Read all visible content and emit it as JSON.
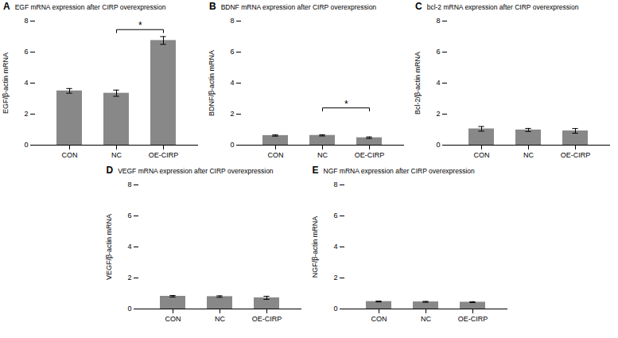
{
  "chart_data": [
    {
      "type": "bar",
      "title": "EGF mRNA expression after CIRP overexpression",
      "ylabel": "EGF/β-actin mRNA",
      "categories": [
        "CON",
        "NC",
        "OE-CIRP"
      ],
      "values": [
        3.5,
        3.35,
        6.75
      ],
      "errors": [
        0.15,
        0.2,
        0.25
      ],
      "color": "#888888",
      "ylim": [
        0,
        8
      ],
      "yticks": [
        0,
        2,
        4,
        6,
        8
      ],
      "annotations": [
        {
          "text": "A"
        },
        {
          "text": "*",
          "x": [
            "NC",
            "OE-CIRP"
          ],
          "y": 7.45
        }
      ]
    },
    {
      "type": "bar",
      "title": "BDNF mRNA expression after CIRP overexpression",
      "ylabel": "BDNF/β-actin mRNA",
      "categories": [
        "CON",
        "NC",
        "OE-CIRP"
      ],
      "values": [
        0.62,
        0.63,
        0.48
      ],
      "errors": [
        0.04,
        0.04,
        0.05
      ],
      "color": "#888888",
      "ylim": [
        0,
        8
      ],
      "yticks": [
        0,
        2,
        4,
        6,
        8
      ],
      "annotations": [
        {
          "text": "B"
        },
        {
          "text": "*",
          "x": [
            "NC",
            "OE-CIRP"
          ],
          "y": 2.4
        }
      ]
    },
    {
      "type": "bar",
      "title": "bcl-2 mRNA expression after CIRP overexpression",
      "ylabel": "Bcl-2/β-actin mRNA",
      "categories": [
        "CON",
        "NC",
        "OE-CIRP"
      ],
      "values": [
        1.05,
        0.98,
        0.92
      ],
      "errors": [
        0.15,
        0.1,
        0.15
      ],
      "color": "#888888",
      "ylim": [
        0,
        8
      ],
      "yticks": [
        0,
        2,
        4,
        6,
        8
      ],
      "annotations": [
        {
          "text": "C"
        }
      ]
    },
    {
      "type": "bar",
      "title": "VEGF mRNA expression after CIRP overexpression",
      "ylabel": "VEGF/β-actin mRNA",
      "categories": [
        "CON",
        "NC",
        "OE-CIRP"
      ],
      "values": [
        0.82,
        0.8,
        0.72
      ],
      "errors": [
        0.05,
        0.05,
        0.1
      ],
      "color": "#888888",
      "ylim": [
        0,
        8
      ],
      "yticks": [
        0,
        2,
        4,
        6,
        8
      ],
      "annotations": [
        {
          "text": "D"
        }
      ]
    },
    {
      "type": "bar",
      "title": "NGF mRNA expression after CIRP overexpression",
      "ylabel": "NGF/β-actin mRNA",
      "categories": [
        "CON",
        "NC",
        "OE-CIRP"
      ],
      "values": [
        0.48,
        0.46,
        0.44
      ],
      "errors": [
        0.03,
        0.03,
        0.03
      ],
      "color": "#888888",
      "ylim": [
        0,
        8
      ],
      "yticks": [
        0,
        2,
        4,
        6,
        8
      ],
      "annotations": [
        {
          "text": "E"
        }
      ]
    }
  ]
}
